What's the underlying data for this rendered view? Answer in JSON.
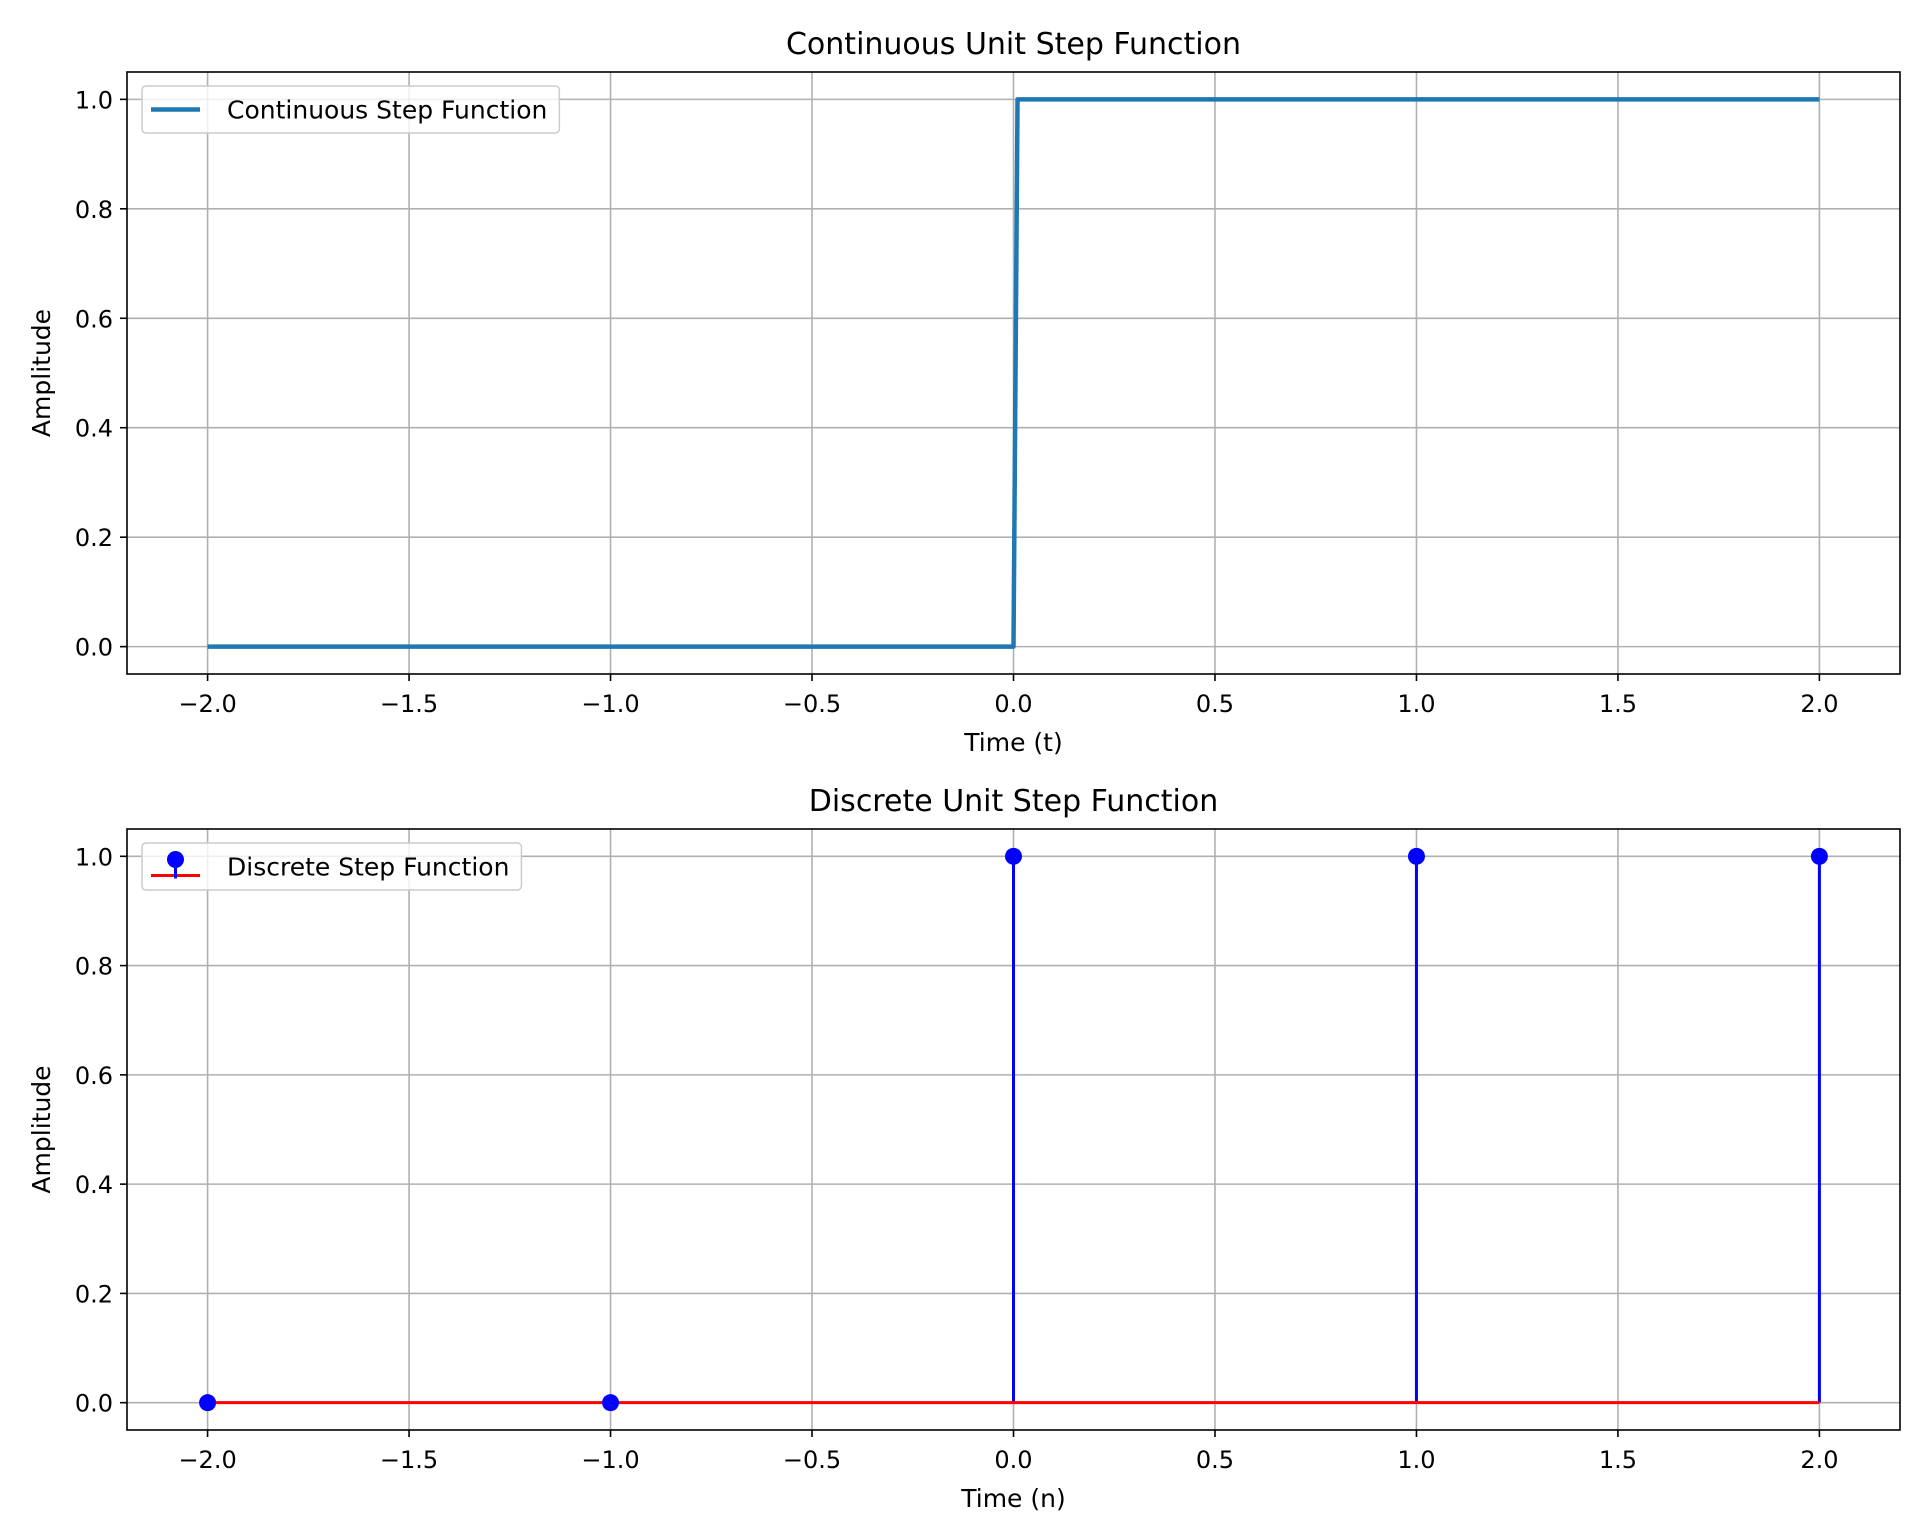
{
  "chart_data": [
    {
      "type": "line",
      "title": "Continuous Unit Step Function",
      "xlabel": "Time (t)",
      "ylabel": "Amplitude",
      "xlim": [
        -2.2,
        2.2
      ],
      "ylim": [
        -0.05,
        1.05
      ],
      "xticks": [
        -2.0,
        -1.5,
        -1.0,
        -0.5,
        0.0,
        0.5,
        1.0,
        1.5,
        2.0
      ],
      "xtick_labels": [
        "−2.0",
        "−1.5",
        "−1.0",
        "−0.5",
        "0.0",
        "0.5",
        "1.0",
        "1.5",
        "2.0"
      ],
      "yticks": [
        0.0,
        0.2,
        0.4,
        0.6,
        0.8,
        1.0
      ],
      "ytick_labels": [
        "0.0",
        "0.2",
        "0.4",
        "0.6",
        "0.8",
        "1.0"
      ],
      "grid": true,
      "legend_position": "top-left",
      "series": [
        {
          "name": "Continuous Step Function",
          "color": "#1f77b4",
          "x": [
            -2.0,
            0.0,
            0.01,
            2.0
          ],
          "y": [
            0.0,
            0.0,
            1.0,
            1.0
          ]
        }
      ]
    },
    {
      "type": "stem",
      "title": "Discrete Unit Step Function",
      "xlabel": "Time (n)",
      "ylabel": "Amplitude",
      "xlim": [
        -2.2,
        2.2
      ],
      "ylim": [
        -0.05,
        1.05
      ],
      "xticks": [
        -2.0,
        -1.5,
        -1.0,
        -0.5,
        0.0,
        0.5,
        1.0,
        1.5,
        2.0
      ],
      "xtick_labels": [
        "−2.0",
        "−1.5",
        "−1.0",
        "−0.5",
        "0.0",
        "0.5",
        "1.0",
        "1.5",
        "2.0"
      ],
      "yticks": [
        0.0,
        0.2,
        0.4,
        0.6,
        0.8,
        1.0
      ],
      "ytick_labels": [
        "0.0",
        "0.2",
        "0.4",
        "0.6",
        "0.8",
        "1.0"
      ],
      "grid": true,
      "legend_position": "top-left",
      "series": [
        {
          "name": "Discrete Step Function",
          "marker_color": "#0000ff",
          "stem_color": "#0000ff",
          "baseline_color": "#ff0000",
          "x": [
            -2,
            -1,
            0,
            1,
            2
          ],
          "y": [
            0,
            0,
            1,
            1,
            1
          ]
        }
      ]
    }
  ]
}
